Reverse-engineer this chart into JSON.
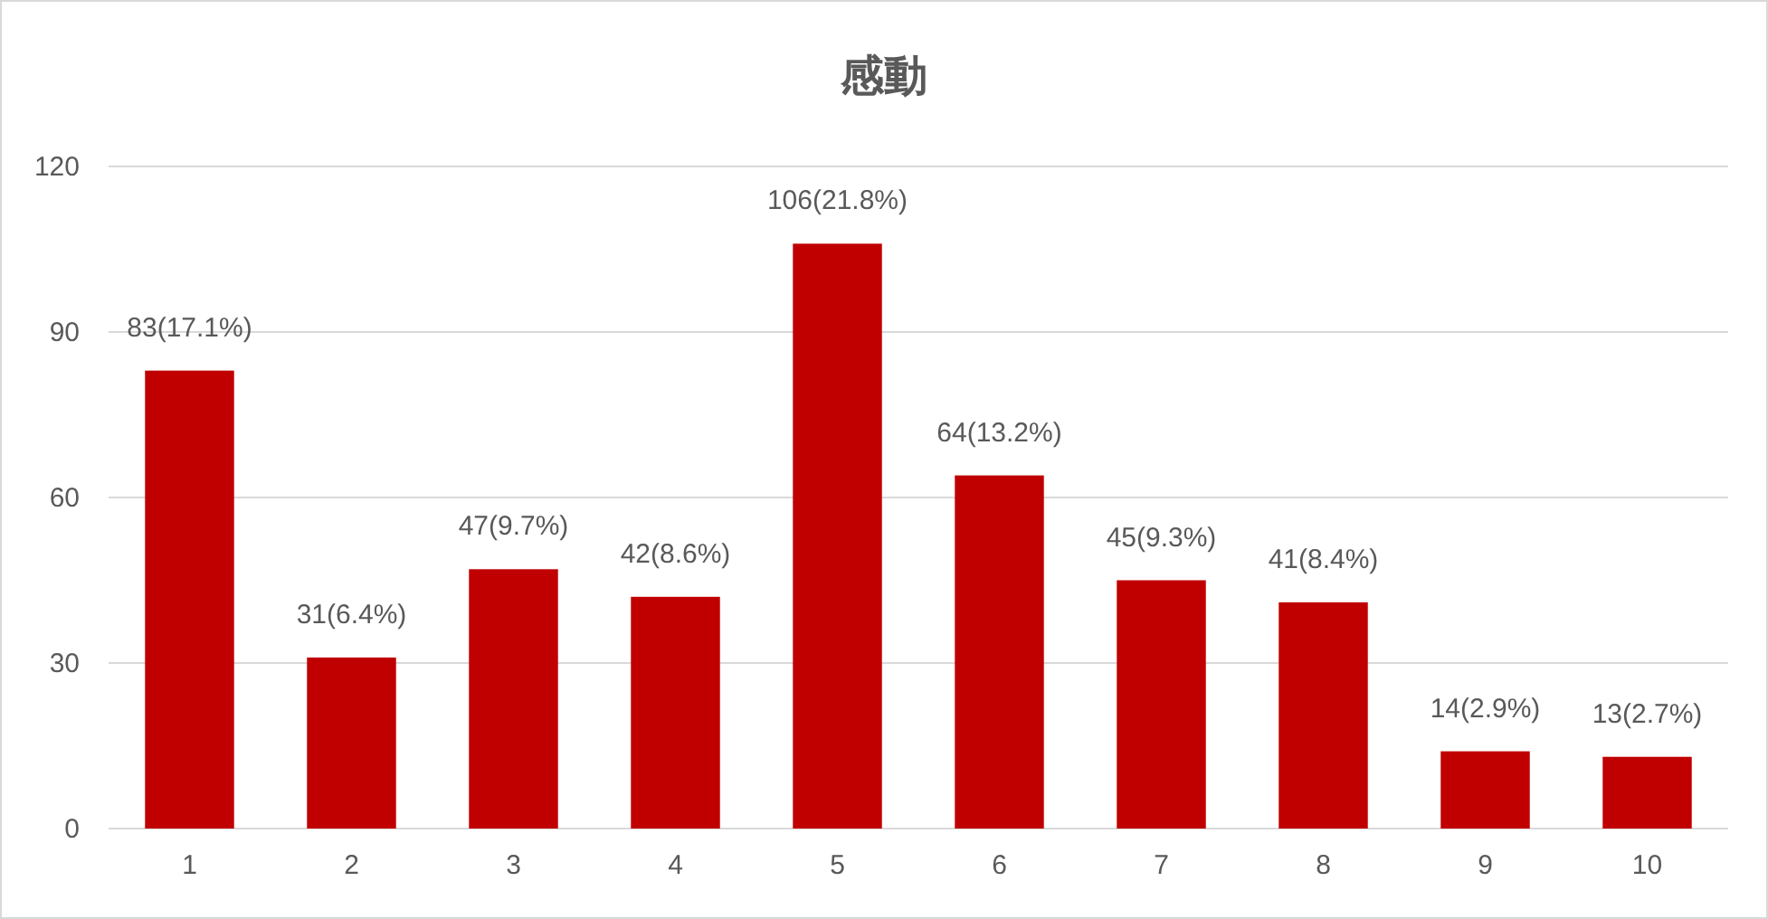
{
  "chart_data": {
    "type": "bar",
    "title": "感動",
    "categories": [
      "1",
      "2",
      "3",
      "4",
      "5",
      "6",
      "7",
      "8",
      "9",
      "10"
    ],
    "values": [
      83,
      31,
      47,
      42,
      106,
      64,
      45,
      41,
      14,
      13
    ],
    "value_labels": [
      "83(17.1%)",
      "31(6.4%)",
      "47(9.7%)",
      "42(8.6%)",
      "106(21.8%)",
      "64(13.2%)",
      "45(9.3%)",
      "41(8.4%)",
      "14(2.9%)",
      "13(2.7%)"
    ],
    "color": "#c00000",
    "ylim": [
      0,
      120
    ],
    "yticks": [
      0,
      30,
      60,
      90,
      120
    ],
    "grid": "y"
  }
}
